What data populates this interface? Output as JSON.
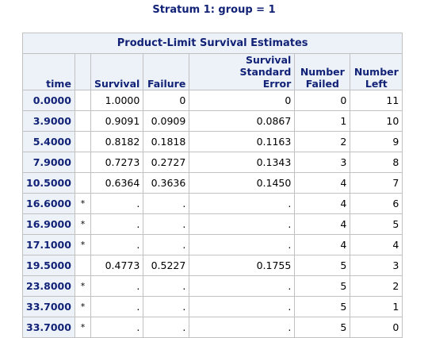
{
  "title": "Stratum 1: group = 1",
  "table": {
    "caption": "Product-Limit Survival Estimates",
    "headers": {
      "time": "time",
      "censor": "",
      "survival": "Survival",
      "failure": "Failure",
      "sse_line1": "Survival Standard",
      "sse_line2": "Error",
      "failed_line1": "Number",
      "failed_line2": "Failed",
      "left_line1": "Number",
      "left_line2": "Left"
    },
    "rows": [
      {
        "time": "0.0000",
        "censor": "",
        "survival": "1.0000",
        "failure": "0",
        "sse": "0",
        "failed": "0",
        "left": "11"
      },
      {
        "time": "3.9000",
        "censor": "",
        "survival": "0.9091",
        "failure": "0.0909",
        "sse": "0.0867",
        "failed": "1",
        "left": "10"
      },
      {
        "time": "5.4000",
        "censor": "",
        "survival": "0.8182",
        "failure": "0.1818",
        "sse": "0.1163",
        "failed": "2",
        "left": "9"
      },
      {
        "time": "7.9000",
        "censor": "",
        "survival": "0.7273",
        "failure": "0.2727",
        "sse": "0.1343",
        "failed": "3",
        "left": "8"
      },
      {
        "time": "10.5000",
        "censor": "",
        "survival": "0.6364",
        "failure": "0.3636",
        "sse": "0.1450",
        "failed": "4",
        "left": "7"
      },
      {
        "time": "16.6000",
        "censor": "*",
        "survival": ".",
        "failure": ".",
        "sse": ".",
        "failed": "4",
        "left": "6"
      },
      {
        "time": "16.9000",
        "censor": "*",
        "survival": ".",
        "failure": ".",
        "sse": ".",
        "failed": "4",
        "left": "5"
      },
      {
        "time": "17.1000",
        "censor": "*",
        "survival": ".",
        "failure": ".",
        "sse": ".",
        "failed": "4",
        "left": "4"
      },
      {
        "time": "19.5000",
        "censor": "",
        "survival": "0.4773",
        "failure": "0.5227",
        "sse": "0.1755",
        "failed": "5",
        "left": "3"
      },
      {
        "time": "23.8000",
        "censor": "*",
        "survival": ".",
        "failure": ".",
        "sse": ".",
        "failed": "5",
        "left": "2"
      },
      {
        "time": "33.7000",
        "censor": "*",
        "survival": ".",
        "failure": ".",
        "sse": ".",
        "failed": "5",
        "left": "1"
      },
      {
        "time": "33.7000",
        "censor": "*",
        "survival": ".",
        "failure": ".",
        "sse": ".",
        "failed": "5",
        "left": "0"
      }
    ]
  },
  "colors": {
    "header_bg": "#edf2f9",
    "header_text": "#112277",
    "border": "#c1c1c1"
  }
}
